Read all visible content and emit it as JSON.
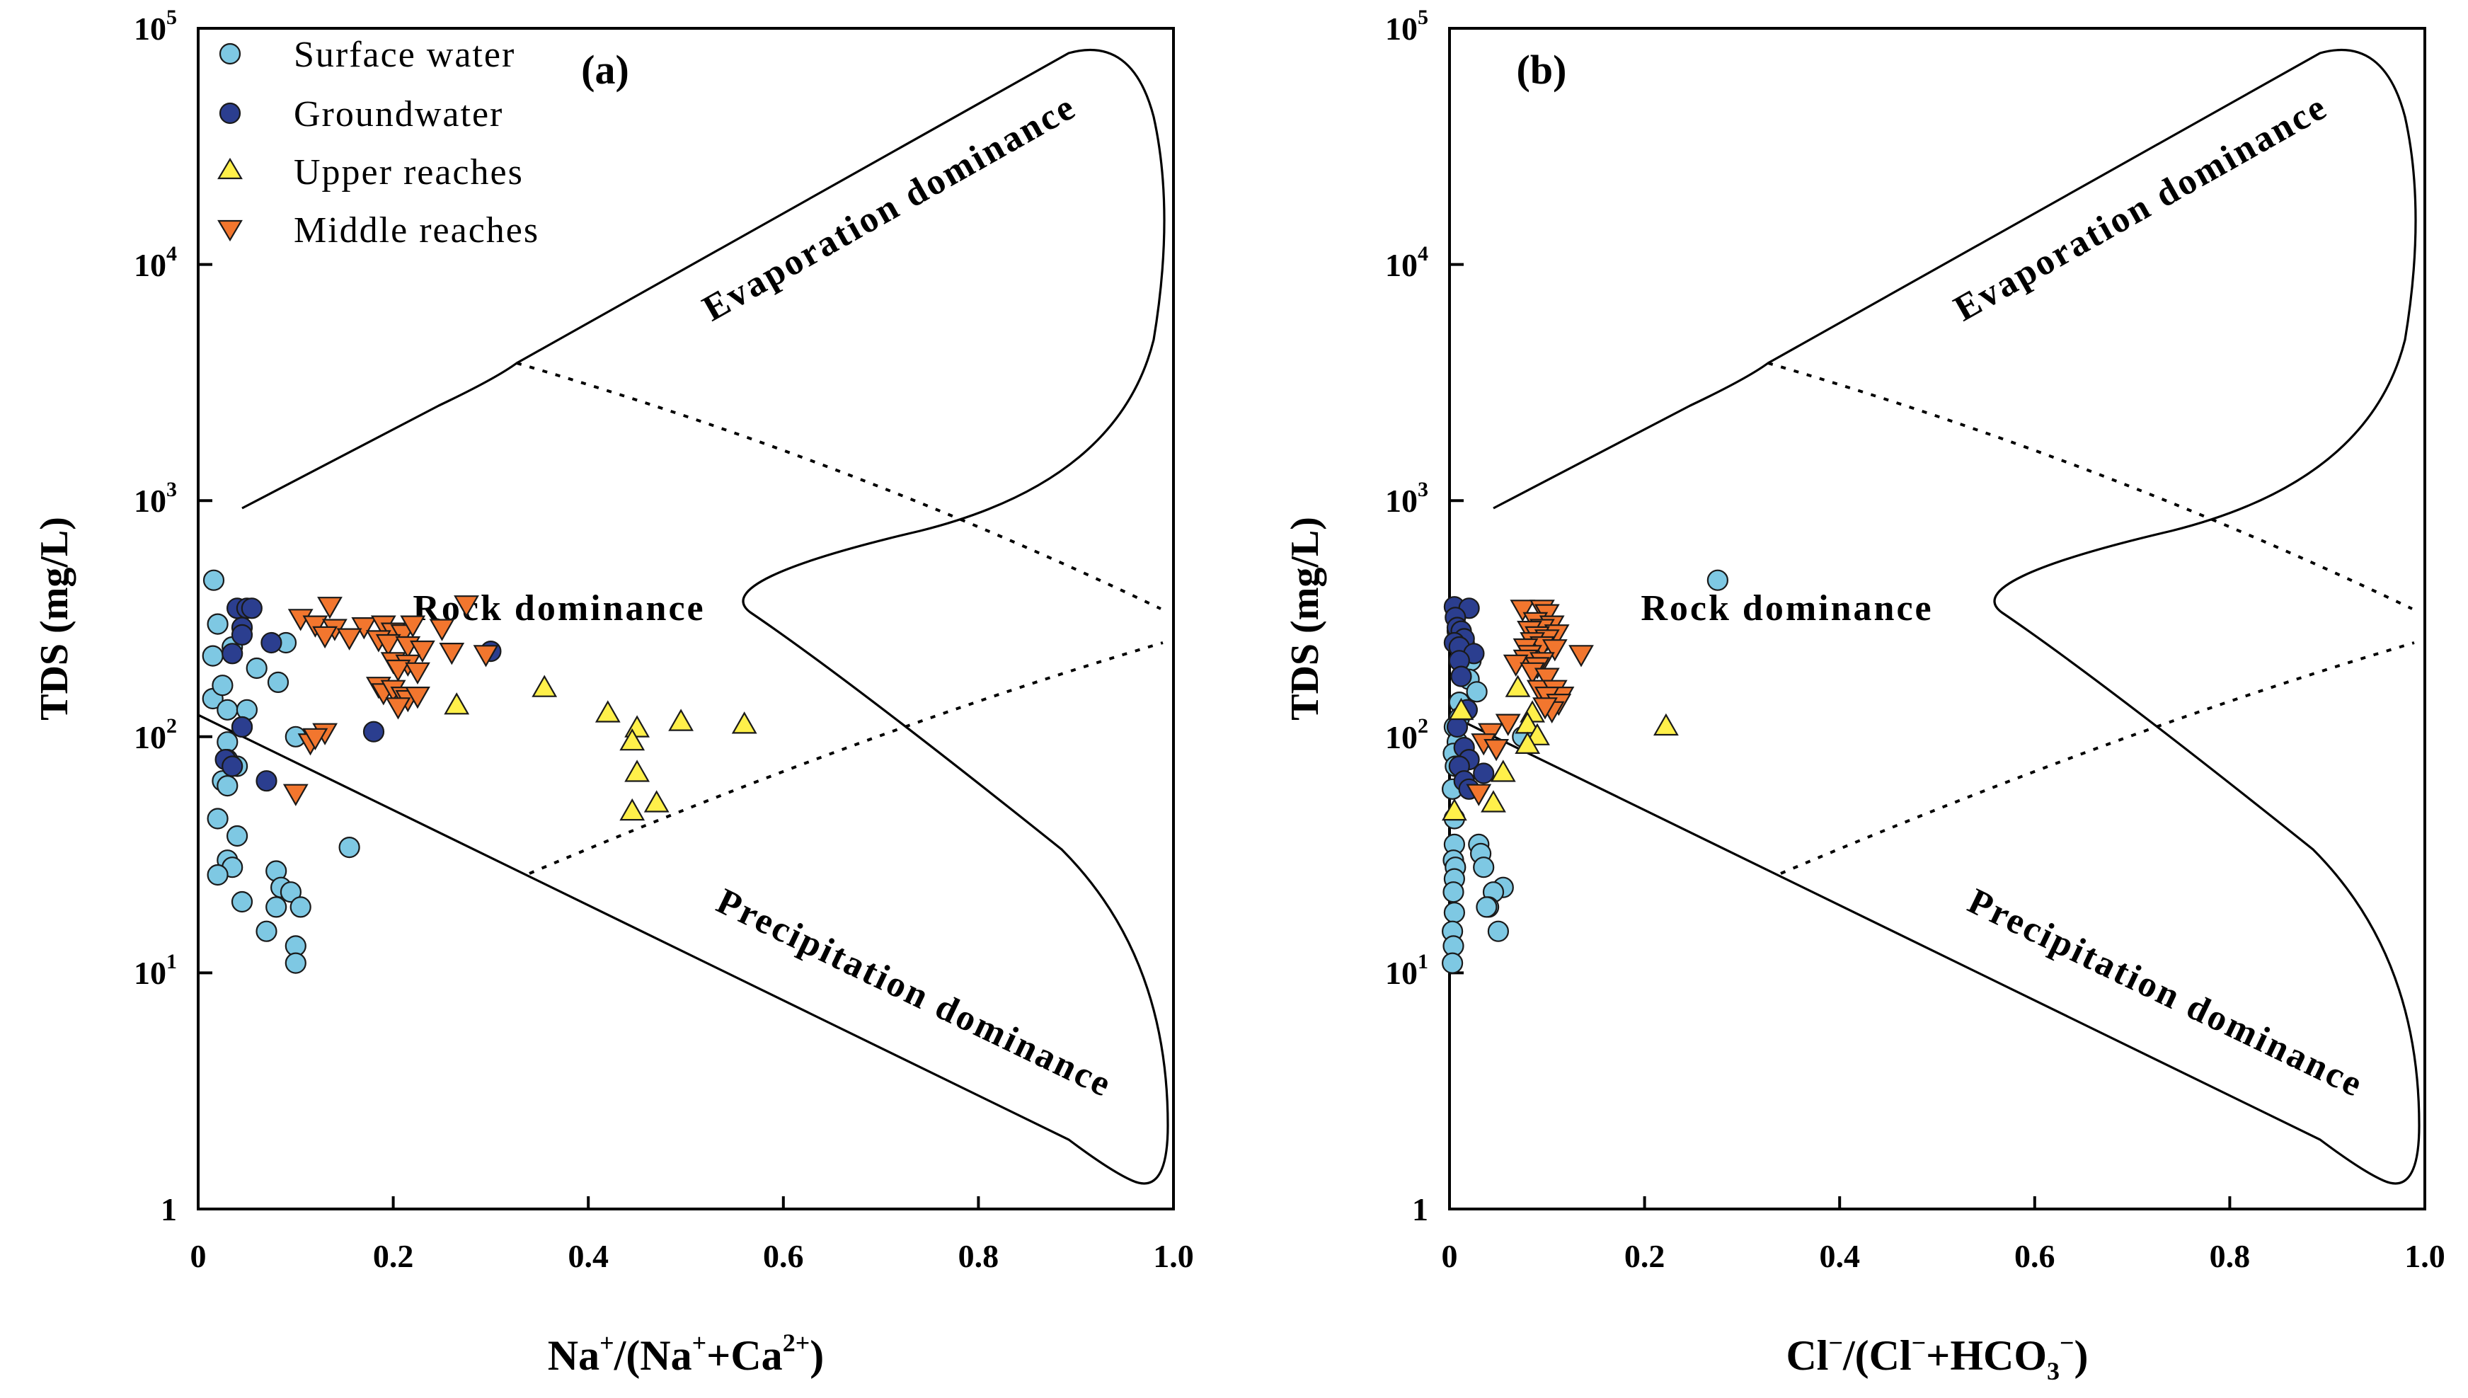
{
  "colors": {
    "surface_water": "#7EC8E3",
    "groundwater": "#2B3E8F",
    "upper_reaches": "#FFF04A",
    "middle_reaches": "#F2762E"
  },
  "legend": {
    "items": [
      {
        "label": "Surface water",
        "marker": "circle",
        "color": "#7EC8E3"
      },
      {
        "label": "Groundwater",
        "marker": "circle",
        "color": "#2B3E8F"
      },
      {
        "label": "Upper reaches",
        "marker": "triangle-up",
        "color": "#FFF04A"
      },
      {
        "label": "Middle reaches",
        "marker": "triangle-down",
        "color": "#F2762E"
      }
    ]
  },
  "chart_data": [
    {
      "type": "scatter",
      "panel_label": "(a)",
      "xlabel_parts": [
        "Na",
        "+",
        "/(Na",
        "+",
        "+Ca",
        "2+",
        ")"
      ],
      "ylabel": "TDS (mg/L)",
      "xlim": [
        0,
        1.0
      ],
      "ylim": [
        1,
        100000
      ],
      "yscale": "log",
      "x_tick_labels": [
        "0",
        "0.2",
        "0.4",
        "0.6",
        "0.8",
        "1.0"
      ],
      "y_tick_labels": [
        [
          "1",
          ""
        ],
        [
          "10",
          "1"
        ],
        [
          "10",
          "2"
        ],
        [
          "10",
          "3"
        ],
        [
          "10",
          "4"
        ],
        [
          "10",
          "5"
        ]
      ],
      "annotations": {
        "evaporation": "Evaporation dominance",
        "rock": "Rock dominance",
        "precipitation": "Precipitation dominance"
      },
      "series": [
        {
          "name": "Surface water",
          "points": [
            [
              0.016,
              460
            ],
            [
              0.02,
              300
            ],
            [
              0.015,
              220
            ],
            [
              0.035,
              240
            ],
            [
              0.06,
              195
            ],
            [
              0.082,
              170
            ],
            [
              0.09,
              250
            ],
            [
              0.015,
              145
            ],
            [
              0.025,
              165
            ],
            [
              0.03,
              130
            ],
            [
              0.05,
              130
            ],
            [
              0.03,
              95
            ],
            [
              0.045,
              110
            ],
            [
              0.03,
              80
            ],
            [
              0.04,
              75
            ],
            [
              0.025,
              65
            ],
            [
              0.03,
              62
            ],
            [
              0.02,
              45
            ],
            [
              0.04,
              38
            ],
            [
              0.03,
              30
            ],
            [
              0.035,
              28
            ],
            [
              0.02,
              26
            ],
            [
              0.08,
              27
            ],
            [
              0.085,
              23
            ],
            [
              0.095,
              22
            ],
            [
              0.08,
              19
            ],
            [
              0.105,
              19
            ],
            [
              0.045,
              20
            ],
            [
              0.07,
              15
            ],
            [
              0.1,
              13
            ],
            [
              0.1,
              11
            ],
            [
              0.155,
              34
            ],
            [
              0.1,
              100
            ]
          ]
        },
        {
          "name": "Groundwater",
          "points": [
            [
              0.04,
              350
            ],
            [
              0.05,
              350
            ],
            [
              0.055,
              350
            ],
            [
              0.045,
              290
            ],
            [
              0.045,
              270
            ],
            [
              0.035,
              225
            ],
            [
              0.075,
              250
            ],
            [
              0.3,
              230
            ],
            [
              0.045,
              110
            ],
            [
              0.028,
              80
            ],
            [
              0.035,
              75
            ],
            [
              0.07,
              65
            ],
            [
              0.18,
              105
            ]
          ]
        },
        {
          "name": "Upper reaches",
          "points": [
            [
              0.265,
              135
            ],
            [
              0.355,
              160
            ],
            [
              0.42,
              125
            ],
            [
              0.45,
              108
            ],
            [
              0.445,
              95
            ],
            [
              0.495,
              115
            ],
            [
              0.56,
              112
            ],
            [
              0.45,
              70
            ],
            [
              0.47,
              52
            ],
            [
              0.445,
              48
            ]
          ]
        },
        {
          "name": "Middle reaches",
          "points": [
            [
              0.135,
              360
            ],
            [
              0.275,
              365
            ],
            [
              0.105,
              320
            ],
            [
              0.12,
              300
            ],
            [
              0.14,
              290
            ],
            [
              0.17,
              295
            ],
            [
              0.19,
              300
            ],
            [
              0.2,
              280
            ],
            [
              0.21,
              275
            ],
            [
              0.22,
              300
            ],
            [
              0.25,
              290
            ],
            [
              0.13,
              270
            ],
            [
              0.155,
              265
            ],
            [
              0.185,
              260
            ],
            [
              0.195,
              250
            ],
            [
              0.215,
              245
            ],
            [
              0.23,
              235
            ],
            [
              0.26,
              230
            ],
            [
              0.295,
              225
            ],
            [
              0.2,
              210
            ],
            [
              0.215,
              205
            ],
            [
              0.205,
              195
            ],
            [
              0.225,
              190
            ],
            [
              0.185,
              165
            ],
            [
              0.19,
              155
            ],
            [
              0.2,
              160
            ],
            [
              0.21,
              150
            ],
            [
              0.215,
              145
            ],
            [
              0.225,
              150
            ],
            [
              0.205,
              135
            ],
            [
              0.13,
              105
            ],
            [
              0.115,
              95
            ],
            [
              0.12,
              100
            ],
            [
              0.1,
              58
            ]
          ]
        }
      ]
    },
    {
      "type": "scatter",
      "panel_label": "(b)",
      "xlabel_parts": [
        "Cl",
        "−",
        "/(Cl",
        "−",
        "+HCO",
        "3",
        "−",
        ")"
      ],
      "ylabel": "TDS (mg/L)",
      "xlim": [
        0,
        1.0
      ],
      "ylim": [
        1,
        100000
      ],
      "yscale": "log",
      "x_tick_labels": [
        "0",
        "0.2",
        "0.4",
        "0.6",
        "0.8",
        "1.0"
      ],
      "y_tick_labels": [
        [
          "1",
          ""
        ],
        [
          "10",
          "1"
        ],
        [
          "10",
          "2"
        ],
        [
          "10",
          "3"
        ],
        [
          "10",
          "4"
        ],
        [
          "10",
          "5"
        ]
      ],
      "annotations": {
        "evaporation": "Evaporation dominance",
        "rock": "Rock dominance",
        "precipitation": "Precipitation dominance"
      },
      "series": [
        {
          "name": "Surface water",
          "points": [
            [
              0.275,
              460
            ],
            [
              0.008,
              280
            ],
            [
              0.015,
              250
            ],
            [
              0.022,
              210
            ],
            [
              0.02,
              175
            ],
            [
              0.028,
              155
            ],
            [
              0.01,
              140
            ],
            [
              0.018,
              130
            ],
            [
              0.01,
              120
            ],
            [
              0.005,
              110
            ],
            [
              0.008,
              95
            ],
            [
              0.004,
              85
            ],
            [
              0.006,
              75
            ],
            [
              0.003,
              60
            ],
            [
              0.005,
              45
            ],
            [
              0.005,
              35
            ],
            [
              0.004,
              30
            ],
            [
              0.006,
              28
            ],
            [
              0.005,
              25
            ],
            [
              0.004,
              22
            ],
            [
              0.005,
              18
            ],
            [
              0.003,
              15
            ],
            [
              0.004,
              13
            ],
            [
              0.003,
              11
            ],
            [
              0.03,
              35
            ],
            [
              0.032,
              32
            ],
            [
              0.035,
              28
            ],
            [
              0.055,
              23
            ],
            [
              0.045,
              22
            ],
            [
              0.04,
              19
            ],
            [
              0.05,
              15
            ],
            [
              0.038,
              19
            ],
            [
              0.075,
              100
            ]
          ]
        },
        {
          "name": "Groundwater",
          "points": [
            [
              0.005,
              355
            ],
            [
              0.02,
              350
            ],
            [
              0.006,
              320
            ],
            [
              0.008,
              290
            ],
            [
              0.012,
              280
            ],
            [
              0.015,
              260
            ],
            [
              0.005,
              250
            ],
            [
              0.01,
              240
            ],
            [
              0.025,
              225
            ],
            [
              0.01,
              210
            ],
            [
              0.012,
              180
            ],
            [
              0.018,
              130
            ],
            [
              0.008,
              110
            ],
            [
              0.015,
              90
            ],
            [
              0.02,
              80
            ],
            [
              0.01,
              75
            ],
            [
              0.015,
              65
            ],
            [
              0.02,
              60
            ],
            [
              0.035,
              70
            ]
          ]
        },
        {
          "name": "Upper reaches",
          "points": [
            [
              0.222,
              110
            ],
            [
              0.07,
              160
            ],
            [
              0.085,
              125
            ],
            [
              0.08,
              112
            ],
            [
              0.09,
              100
            ],
            [
              0.08,
              92
            ],
            [
              0.055,
              70
            ],
            [
              0.045,
              52
            ],
            [
              0.012,
              128
            ],
            [
              0.005,
              48
            ]
          ]
        },
        {
          "name": "Middle reaches",
          "points": [
            [
              0.075,
              350
            ],
            [
              0.095,
              350
            ],
            [
              0.1,
              335
            ],
            [
              0.088,
              310
            ],
            [
              0.105,
              300
            ],
            [
              0.095,
              290
            ],
            [
              0.082,
              285
            ],
            [
              0.11,
              275
            ],
            [
              0.09,
              270
            ],
            [
              0.1,
              262
            ],
            [
              0.085,
              255
            ],
            [
              0.095,
              245
            ],
            [
              0.078,
              240
            ],
            [
              0.108,
              238
            ],
            [
              0.082,
              225
            ],
            [
              0.135,
              225
            ],
            [
              0.078,
              215
            ],
            [
              0.095,
              210
            ],
            [
              0.068,
              205
            ],
            [
              0.09,
              200
            ],
            [
              0.085,
              190
            ],
            [
              0.1,
              180
            ],
            [
              0.092,
              160
            ],
            [
              0.108,
              160
            ],
            [
              0.115,
              150
            ],
            [
              0.1,
              150
            ],
            [
              0.112,
              140
            ],
            [
              0.105,
              130
            ],
            [
              0.098,
              135
            ],
            [
              0.06,
              115
            ],
            [
              0.042,
              105
            ],
            [
              0.035,
              95
            ],
            [
              0.048,
              90
            ],
            [
              0.03,
              58
            ]
          ]
        }
      ]
    }
  ]
}
